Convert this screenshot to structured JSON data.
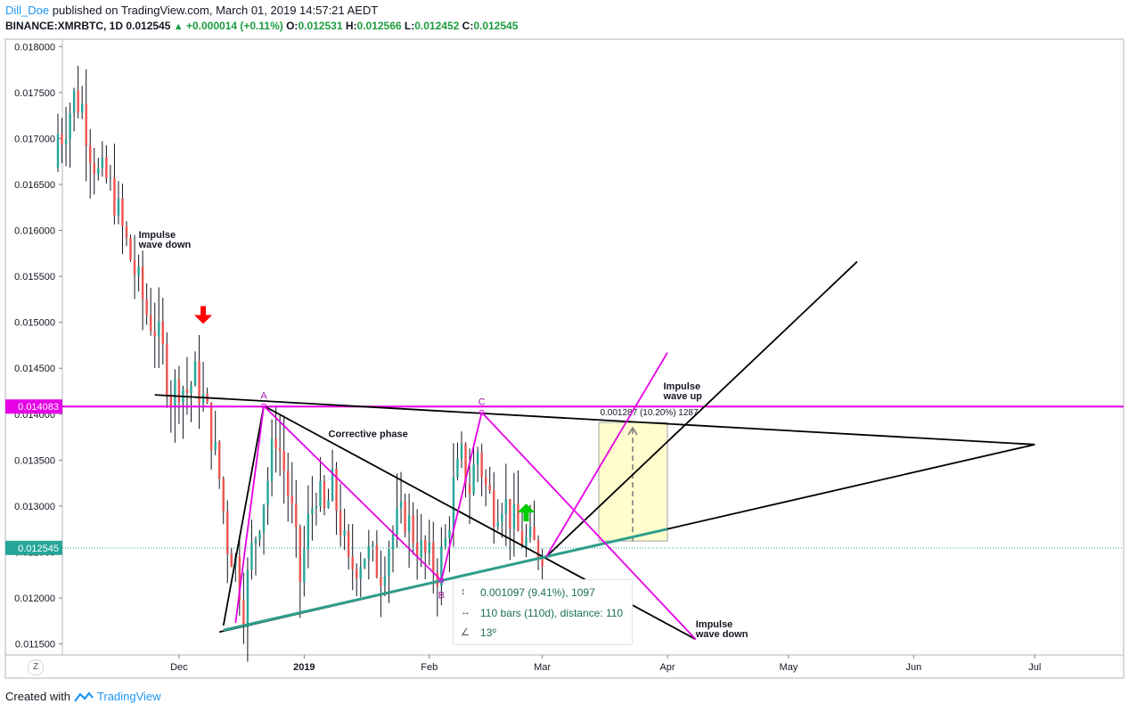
{
  "header": {
    "author": "Dill_Doe",
    "published": "published on TradingView.com, March 01, 2019 14:57:21 AEDT",
    "symbol": "BINANCE:XMRBTC, 1D",
    "last": "0.012545",
    "change": "+0.000014 (+0.11%)",
    "o_label": "O:",
    "o": "0.012531",
    "h_label": "H:",
    "h": "0.012566",
    "l_label": "L:",
    "l": "0.012452",
    "c_label": "C:",
    "c": "0.012545"
  },
  "footer": {
    "created": "Created with",
    "brand": "TradingView"
  },
  "timezone_button": "Z",
  "measure": {
    "price_range": "0.001097 (9.41%), 1097",
    "bars_range": "110 bars (110d), distance: 110",
    "angle": "13º"
  },
  "colors": {
    "up": "#26a69a",
    "down": "#ef5350",
    "magenta": "#e600e6",
    "teal": "#2e9e8c",
    "black": "#000000",
    "highlight": "#fffcc8"
  },
  "chart_data": {
    "type": "candlestick",
    "ylim": [
      0.01138,
      0.01808
    ],
    "yticks": [
      "0.018000",
      "0.017500",
      "0.017000",
      "0.016500",
      "0.016000",
      "0.015500",
      "0.015000",
      "0.014500",
      "0.014000",
      "0.013500",
      "0.013000",
      "0.012500",
      "0.012000",
      "0.011500"
    ],
    "xticks": [
      {
        "label": "Dec",
        "date": "2018-12-01",
        "bold": false
      },
      {
        "label": "2019",
        "date": "2019-01-01",
        "bold": true
      },
      {
        "label": "Feb",
        "date": "2019-02-01",
        "bold": false
      },
      {
        "label": "Mar",
        "date": "2019-03-01",
        "bold": false
      },
      {
        "label": "Apr",
        "date": "2019-04-01",
        "bold": false
      },
      {
        "label": "May",
        "date": "2019-05-01",
        "bold": false
      },
      {
        "label": "Jun",
        "date": "2019-06-01",
        "bold": false
      },
      {
        "label": "Jul",
        "date": "2019-07-01",
        "bold": false
      }
    ],
    "price_labels": [
      {
        "text": "0.014083",
        "value": 0.014083,
        "color": "#e600e6"
      },
      {
        "text": "0.012545",
        "value": 0.012545,
        "color": "#26a69a"
      }
    ],
    "closes_schedule": [
      [
        "2018-11-02",
        0.01705
      ],
      [
        "2018-11-05",
        0.01745
      ],
      [
        "2018-11-07",
        0.01735
      ],
      [
        "2018-11-09",
        0.0169
      ],
      [
        "2018-11-11",
        0.0166
      ],
      [
        "2018-11-13",
        0.01655
      ],
      [
        "2018-11-15",
        0.01635
      ],
      [
        "2018-11-17",
        0.016
      ],
      [
        "2018-11-19",
        0.0157
      ],
      [
        "2018-11-21",
        0.0154
      ],
      [
        "2018-11-23",
        0.0151
      ],
      [
        "2018-11-25",
        0.01495
      ],
      [
        "2018-11-27",
        0.01465
      ],
      [
        "2018-11-29",
        0.0142
      ],
      [
        "2018-12-01",
        0.01435
      ],
      [
        "2018-12-03",
        0.01425
      ],
      [
        "2018-12-05",
        0.0144
      ],
      [
        "2018-12-07",
        0.01415
      ],
      [
        "2018-12-09",
        0.0138
      ],
      [
        "2018-12-11",
        0.0133
      ],
      [
        "2018-12-13",
        0.0126
      ],
      [
        "2018-12-15",
        0.0124
      ],
      [
        "2018-12-17",
        0.0119
      ],
      [
        "2018-12-19",
        0.0125
      ],
      [
        "2018-12-21",
        0.0129
      ],
      [
        "2018-12-23",
        0.0133
      ],
      [
        "2018-12-25",
        0.0138
      ],
      [
        "2018-12-27",
        0.0134
      ],
      [
        "2018-12-29",
        0.0129
      ],
      [
        "2018-12-31",
        0.0122
      ],
      [
        "2019-01-02",
        0.0128
      ],
      [
        "2019-01-04",
        0.0132
      ],
      [
        "2019-01-06",
        0.0129
      ],
      [
        "2019-01-08",
        0.0132
      ],
      [
        "2019-01-10",
        0.0128
      ],
      [
        "2019-01-12",
        0.0123
      ],
      [
        "2019-01-14",
        0.0124
      ],
      [
        "2019-01-16",
        0.0125
      ],
      [
        "2019-01-18",
        0.0124
      ],
      [
        "2019-01-20",
        0.0123
      ],
      [
        "2019-01-22",
        0.0126
      ],
      [
        "2019-01-24",
        0.0128
      ],
      [
        "2019-01-26",
        0.0129
      ],
      [
        "2019-01-28",
        0.0127
      ],
      [
        "2019-01-30",
        0.0125
      ],
      [
        "2019-02-01",
        0.0124
      ],
      [
        "2019-02-03",
        0.0123
      ],
      [
        "2019-02-05",
        0.0126
      ],
      [
        "2019-02-07",
        0.0132
      ],
      [
        "2019-02-09",
        0.0135
      ],
      [
        "2019-02-11",
        0.0132
      ],
      [
        "2019-02-13",
        0.0136
      ],
      [
        "2019-02-15",
        0.0132
      ],
      [
        "2019-02-17",
        0.013
      ],
      [
        "2019-02-19",
        0.0131
      ],
      [
        "2019-02-21",
        0.0129
      ],
      [
        "2019-02-23",
        0.0127
      ],
      [
        "2019-02-25",
        0.0126
      ],
      [
        "2019-02-27",
        0.01255
      ],
      [
        "2019-03-01",
        0.012545
      ]
    ],
    "points": [
      {
        "label": "A",
        "date": "2018-12-22",
        "value": 0.01409
      },
      {
        "label": "B",
        "date": "2019-02-04",
        "value": 0.01219
      },
      {
        "label": "C",
        "date": "2019-02-14",
        "value": 0.01402
      }
    ],
    "annotations": [
      {
        "text": "Impulse\nwave down",
        "date": "2018-11-21",
        "value": 0.01592
      },
      {
        "text": "Corrective phase",
        "date": "2019-01-07",
        "value": 0.01375
      },
      {
        "text": "Impulse\nwave up",
        "date": "2019-03-31",
        "value": 0.01427
      },
      {
        "text": "Impulse\nwave down",
        "date": "2019-04-08",
        "value": 0.01168
      }
    ],
    "range_box": {
      "date_start": "2019-03-15",
      "date_end": "2019-04-01",
      "low": 0.01262,
      "high": 0.01391,
      "label": "0.001287 (10.20%) 1287"
    },
    "arrows": [
      {
        "direction": "down",
        "color": "#ff0000",
        "date": "2018-12-07",
        "value": 0.01506
      },
      {
        "direction": "up",
        "color": "#00d000",
        "date": "2019-02-25",
        "value": 0.01295
      }
    ]
  }
}
